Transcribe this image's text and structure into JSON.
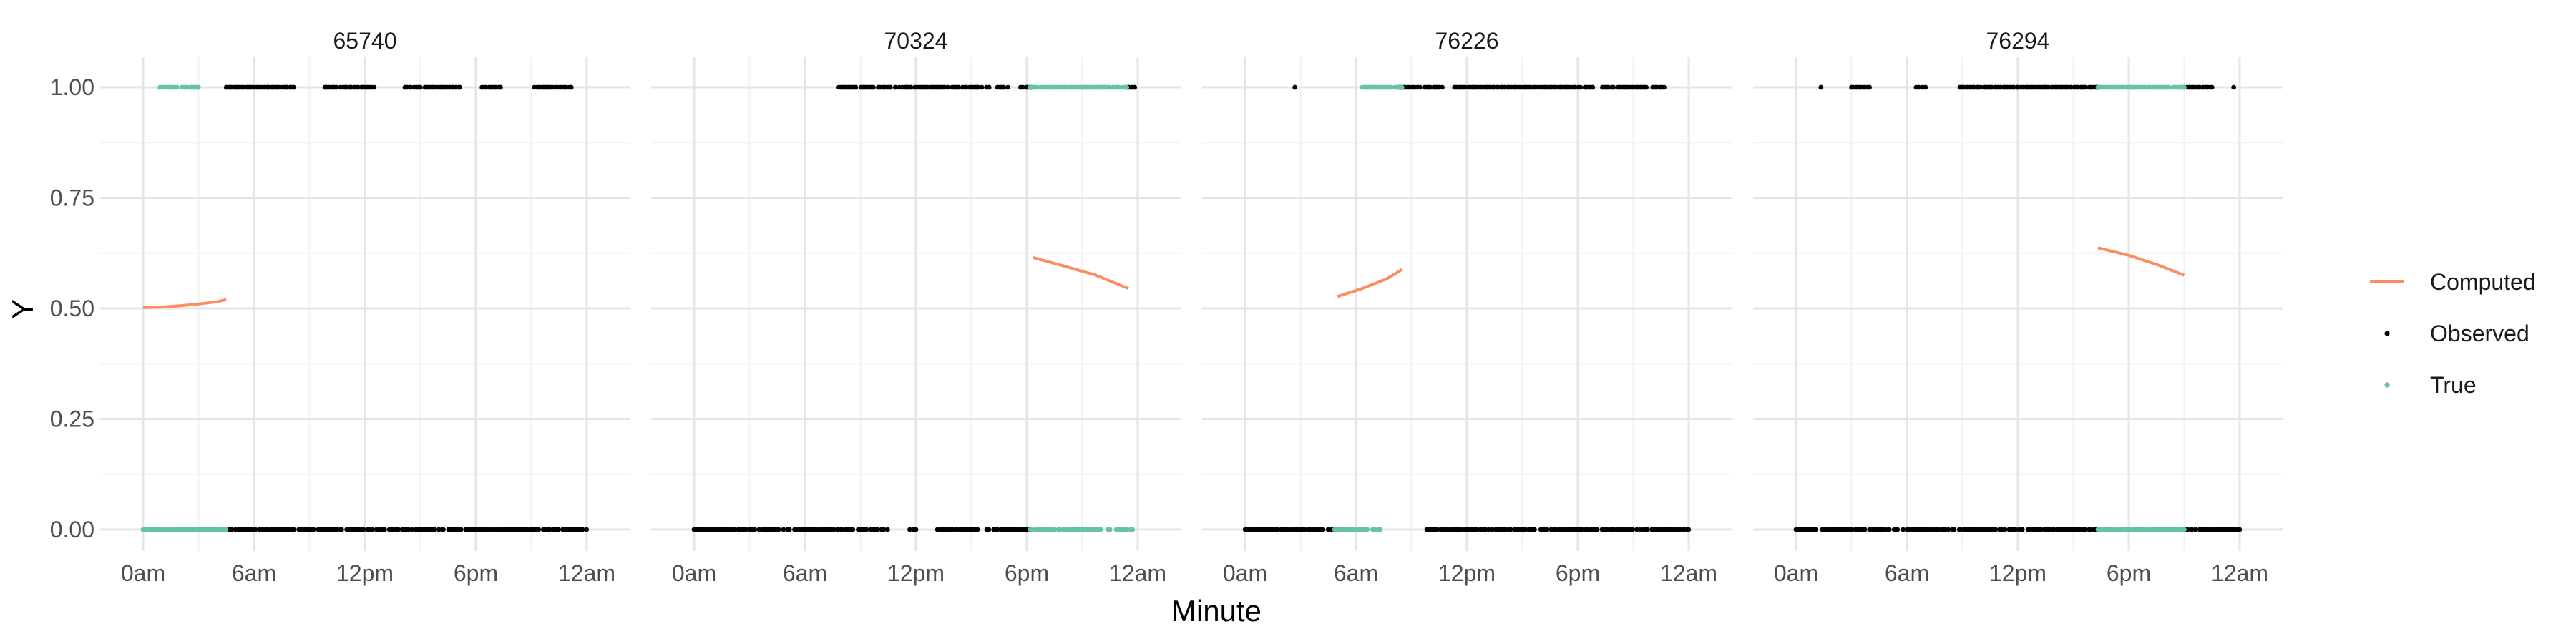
{
  "chart_data": {
    "type": "scatter",
    "xlabel": "Minute",
    "ylabel": "Y",
    "x_tick_labels": [
      "0am",
      "6am",
      "12pm",
      "6pm",
      "12am"
    ],
    "x_ticks": [
      0,
      360,
      720,
      1080,
      1440
    ],
    "xlim": [
      0,
      1440
    ],
    "y_ticks": [
      0,
      0.25,
      0.5,
      0.75,
      1
    ],
    "y_tick_labels": [
      "0.00",
      "0.25",
      "0.50",
      "0.75",
      "1.00"
    ],
    "ylim": [
      0,
      1
    ],
    "grid": true,
    "legend": {
      "position": "right",
      "entries": [
        {
          "label": "Computed",
          "kind": "line",
          "color": "#fc8d62"
        },
        {
          "label": "Observed",
          "kind": "point",
          "color": "#000000"
        },
        {
          "label": "True",
          "kind": "point",
          "color": "#66c2a5"
        }
      ]
    },
    "panels": [
      {
        "title": "65740",
        "computed": [
          [
            0,
            0.502
          ],
          [
            60,
            0.503
          ],
          [
            120,
            0.506
          ],
          [
            180,
            0.51
          ],
          [
            240,
            0.515
          ],
          [
            270,
            0.52
          ]
        ],
        "true_segments": [
          {
            "y": 1,
            "ranges": [
              [
                55,
                110
              ],
              [
                125,
                180
              ]
            ]
          },
          {
            "y": 0,
            "ranges": [
              [
                0,
                270
              ]
            ]
          }
        ],
        "observed_segments": [
          {
            "y": 1,
            "ranges": [
              [
                270,
                490
              ],
              [
                590,
                750
              ],
              [
                850,
                1030
              ],
              [
                1100,
                1160
              ],
              [
                1270,
                1390
              ]
            ]
          },
          {
            "y": 0,
            "ranges": [
              [
                265,
                1440
              ]
            ]
          }
        ]
      },
      {
        "title": "70324",
        "computed": [
          [
            1100,
            0.615
          ],
          [
            1200,
            0.596
          ],
          [
            1300,
            0.576
          ],
          [
            1410,
            0.545
          ]
        ],
        "true_segments": [
          {
            "y": 1,
            "ranges": [
              [
                1090,
                1410
              ]
            ]
          },
          {
            "y": 0,
            "ranges": [
              [
                1090,
                1430
              ]
            ]
          }
        ],
        "observed_segments": [
          {
            "y": 1,
            "ranges": [
              [
                470,
                1020
              ],
              [
                1060,
                1095
              ],
              [
                1405,
                1430
              ]
            ]
          },
          {
            "y": 0,
            "ranges": [
              [
                0,
                630
              ],
              [
                700,
                720
              ],
              [
                790,
                920
              ],
              [
                950,
                1090
              ]
            ]
          }
        ]
      },
      {
        "title": "76226",
        "computed": [
          [
            300,
            0.527
          ],
          [
            380,
            0.545
          ],
          [
            460,
            0.567
          ],
          [
            510,
            0.588
          ]
        ],
        "true_segments": [
          {
            "y": 1,
            "ranges": [
              [
                380,
                510
              ]
            ]
          },
          {
            "y": 0,
            "ranges": [
              [
                290,
                440
              ]
            ]
          }
        ],
        "observed_segments": [
          {
            "y": 1,
            "ranges": [
              [
                160,
                165
              ],
              [
                500,
                640
              ],
              [
                680,
                1130
              ],
              [
                1160,
                1360
              ]
            ]
          },
          {
            "y": 0,
            "ranges": [
              [
                0,
                290
              ],
              [
                590,
                940
              ],
              [
                960,
                1440
              ]
            ]
          }
        ]
      },
      {
        "title": "76294",
        "computed": [
          [
            980,
            0.637
          ],
          [
            1080,
            0.62
          ],
          [
            1180,
            0.597
          ],
          [
            1260,
            0.575
          ]
        ],
        "true_segments": [
          {
            "y": 1,
            "ranges": [
              [
                980,
                1260
              ]
            ]
          },
          {
            "y": 0,
            "ranges": [
              [
                980,
                1260
              ]
            ]
          }
        ],
        "observed_segments": [
          {
            "y": 1,
            "ranges": [
              [
                80,
                85
              ],
              [
                180,
                240
              ],
              [
                390,
                420
              ],
              [
                530,
                980
              ],
              [
                1260,
                1350
              ],
              [
                1420,
                1425
              ]
            ]
          },
          {
            "y": 0,
            "ranges": [
              [
                0,
                980
              ],
              [
                1250,
                1440
              ]
            ]
          }
        ]
      }
    ]
  }
}
